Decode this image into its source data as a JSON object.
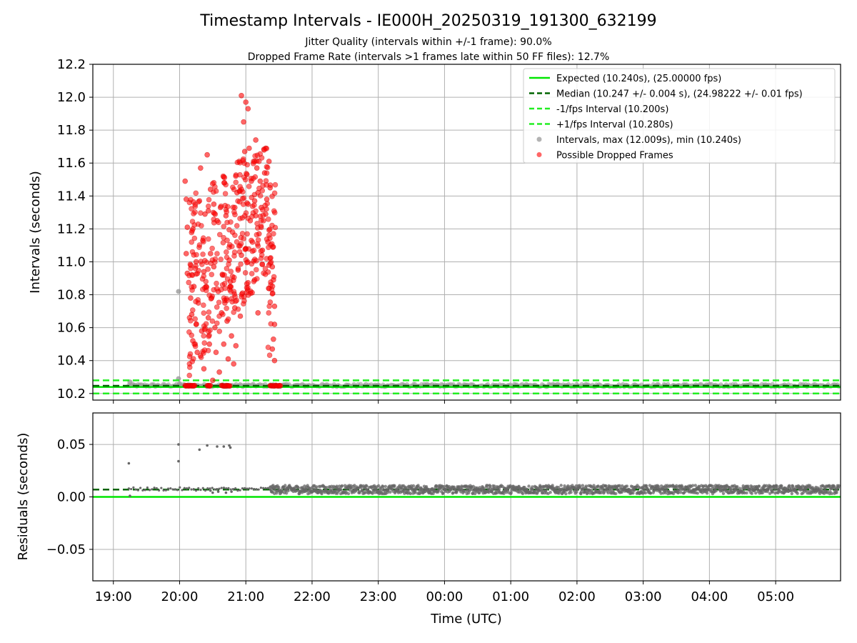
{
  "title": "Timestamp Intervals - IE000H_20250319_191300_632199",
  "subtitle_1": "Jitter Quality (intervals within +/-1 frame): 90.0%",
  "subtitle_2": "Dropped Frame Rate (intervals >1 frames late within 50 FF files): 12.7%",
  "colors": {
    "expected": "#00e600",
    "median": "#006400",
    "fps_band": "#22ee22",
    "intervals": "#999999",
    "dropped": "#ff0000",
    "residuals": "#666666",
    "grid": "#b0b0b0"
  },
  "chart_data": [
    {
      "type": "scatter",
      "panel": "intervals",
      "ylabel": "Intervals (seconds)",
      "ylim": [
        10.16,
        12.2
      ],
      "yticks": [
        "10.2",
        "10.4",
        "10.6",
        "10.8",
        "11.0",
        "11.2",
        "11.4",
        "11.6",
        "11.8",
        "12.0",
        "12.2"
      ],
      "grid": true,
      "legend_position": "top-right",
      "lines": [
        {
          "name": "Expected (10.240s), (25.00000 fps)",
          "y": 10.24,
          "style": "solid",
          "color": "#00e600"
        },
        {
          "name": "Median (10.247 +/- 0.004 s), (24.98222 +/- 0.01 fps)",
          "y": 10.247,
          "style": "dashed",
          "color": "#006400"
        },
        {
          "name": "-1/fps Interval (10.200s)",
          "y": 10.2,
          "style": "dashed",
          "color": "#22ee22"
        },
        {
          "name": "+1/fps Interval (10.280s)",
          "y": 10.28,
          "style": "dashed",
          "color": "#22ee22"
        }
      ],
      "series": [
        {
          "name": "Intervals, max (12.009s), min (10.240s)",
          "color": "#999999",
          "points": [
            [
              "19:15",
              10.27
            ],
            [
              "19:59",
              10.82
            ],
            [
              "19:59",
              10.29
            ],
            [
              "20:00",
              10.26
            ],
            [
              "21:25",
              10.25
            ],
            [
              "21:35",
              10.25
            ]
          ],
          "band": {
            "x_start": "19:14",
            "x_end": "06:00",
            "y_min": 10.24,
            "y_max": 10.258
          }
        },
        {
          "name": "Possible Dropped Frames",
          "color": "#ff0000",
          "baseline_y": 10.247,
          "baseline_ranges": [
            [
              "20:05",
              "20:14"
            ],
            [
              "20:25",
              "20:28"
            ],
            [
              "20:38",
              "20:42"
            ],
            [
              "20:42",
              "20:46"
            ],
            [
              "21:22",
              "21:32"
            ]
          ],
          "points": [
            [
              "20:05",
              11.49
            ],
            [
              "20:06",
              11.05
            ],
            [
              "20:07",
              11.21
            ],
            [
              "20:06",
              11.38
            ],
            [
              "20:07",
              10.93
            ],
            [
              "20:10",
              10.78
            ],
            [
              "20:11",
              10.68
            ],
            [
              "20:12",
              10.52
            ],
            [
              "20:12",
              11.2
            ],
            [
              "20:13",
              10.85
            ],
            [
              "20:15",
              11.0
            ],
            [
              "20:15",
              10.62
            ],
            [
              "20:16",
              10.45
            ],
            [
              "20:17",
              10.75
            ],
            [
              "20:18",
              11.37
            ],
            [
              "20:19",
              11.57
            ],
            [
              "20:20",
              10.58
            ],
            [
              "20:21",
              11.13
            ],
            [
              "20:22",
              10.35
            ],
            [
              "20:22",
              10.94
            ],
            [
              "20:23",
              11.29
            ],
            [
              "20:24",
              10.85
            ],
            [
              "20:25",
              11.65
            ],
            [
              "20:26",
              10.66
            ],
            [
              "20:26",
              11.31
            ],
            [
              "20:27",
              10.5
            ],
            [
              "20:28",
              11.05
            ],
            [
              "20:28",
              11.44
            ],
            [
              "20:29",
              10.78
            ],
            [
              "20:30",
              10.28
            ],
            [
              "20:31",
              10.97
            ],
            [
              "20:31",
              11.35
            ],
            [
              "20:32",
              10.6
            ],
            [
              "20:33",
              10.45
            ],
            [
              "20:34",
              11.25
            ],
            [
              "20:35",
              10.82
            ],
            [
              "20:36",
              10.33
            ],
            [
              "20:37",
              11.33
            ],
            [
              "20:38",
              10.69
            ],
            [
              "20:39",
              10.92
            ],
            [
              "20:40",
              10.5
            ],
            [
              "20:41",
              10.75
            ],
            [
              "20:42",
              11.28
            ],
            [
              "20:43",
              10.64
            ],
            [
              "20:44",
              10.41
            ],
            [
              "20:45",
              11.01
            ],
            [
              "20:46",
              10.88
            ],
            [
              "20:47",
              10.55
            ],
            [
              "20:48",
              11.18
            ],
            [
              "20:49",
              10.38
            ],
            [
              "20:50",
              10.72
            ],
            [
              "20:50",
              11.33
            ],
            [
              "20:51",
              10.49
            ],
            [
              "20:52",
              11.42
            ],
            [
              "20:53",
              10.95
            ],
            [
              "20:54",
              11.61
            ],
            [
              "20:55",
              10.67
            ],
            [
              "20:56",
              11.04
            ],
            [
              "20:56",
              11.44
            ],
            [
              "20:57",
              10.81
            ],
            [
              "20:58",
              11.85
            ],
            [
              "20:59",
              11.67
            ],
            [
              "21:00",
              11.08
            ],
            [
              "21:01",
              11.53
            ],
            [
              "21:02",
              11.35
            ],
            [
              "21:03",
              11.69
            ],
            [
              "21:04",
              11.25
            ],
            [
              "21:05",
              11.49
            ],
            [
              "21:06",
              11.12
            ],
            [
              "21:07",
              11.61
            ],
            [
              "21:08",
              11.37
            ],
            [
              "21:09",
              11.28
            ],
            [
              "21:10",
              11.57
            ],
            [
              "21:11",
              11.42
            ],
            [
              "21:12",
              11.17
            ],
            [
              "21:13",
              11.49
            ],
            [
              "21:14",
              11.33
            ],
            [
              "21:15",
              11.07
            ],
            [
              "21:16",
              11.25
            ],
            [
              "21:17",
              11.54
            ],
            [
              "21:18",
              11.29
            ],
            [
              "21:19",
              11.38
            ],
            [
              "21:20",
              11.12
            ],
            [
              "21:21",
              10.98
            ],
            [
              "21:22",
              11.45
            ],
            [
              "20:56",
              12.01
            ],
            [
              "21:00",
              11.97
            ],
            [
              "21:02",
              11.93
            ],
            [
              "21:09",
              11.74
            ],
            [
              "21:18",
              11.69
            ],
            [
              "21:21",
              11.61
            ],
            [
              "21:25",
              10.89
            ],
            [
              "21:26",
              10.62
            ],
            [
              "21:24",
              10.47
            ],
            [
              "21:26",
              10.4
            ],
            [
              "21:25",
              10.53
            ],
            [
              "21:08",
              10.89
            ],
            [
              "21:11",
              10.69
            ],
            [
              "21:24",
              10.97
            ],
            [
              "21:26",
              10.73
            ]
          ]
        }
      ]
    },
    {
      "type": "scatter",
      "panel": "residuals",
      "xlabel": "Time (UTC)",
      "ylabel": "Residuals (seconds)",
      "ylim": [
        -0.08,
        0.08
      ],
      "yticks": [
        "−0.05",
        "0.00",
        "0.05"
      ],
      "xticks": [
        "19:00",
        "20:00",
        "21:00",
        "22:00",
        "23:00",
        "00:00",
        "01:00",
        "02:00",
        "03:00",
        "04:00",
        "05:00"
      ],
      "grid": true,
      "lines": [
        {
          "y": 0.0,
          "style": "solid",
          "color": "#00e600"
        },
        {
          "y": 0.007,
          "style": "dashed",
          "color": "#006400"
        }
      ],
      "series": [
        {
          "color": "#666666",
          "points": [
            [
              "19:14",
              0.032
            ],
            [
              "19:15",
              0.001
            ],
            [
              "19:59",
              0.05
            ],
            [
              "19:59",
              0.034
            ],
            [
              "20:18",
              0.045
            ],
            [
              "20:25",
              0.049
            ],
            [
              "20:34",
              0.048
            ],
            [
              "20:40",
              0.048
            ],
            [
              "20:45",
              0.049
            ],
            [
              "20:46",
              0.047
            ],
            [
              "20:28",
              0.006
            ],
            [
              "20:30",
              0.004
            ],
            [
              "20:35",
              0.005
            ],
            [
              "20:42",
              0.004
            ],
            [
              "20:47",
              0.005
            ]
          ],
          "band": {
            "x_start": "19:14",
            "x_end": "21:25",
            "y_min": 0.006,
            "y_max": 0.009,
            "sparse": true
          },
          "dense_band": {
            "x_start": "21:22",
            "x_end": "06:00",
            "y_min": 0.003,
            "y_max": 0.011
          }
        }
      ]
    }
  ]
}
